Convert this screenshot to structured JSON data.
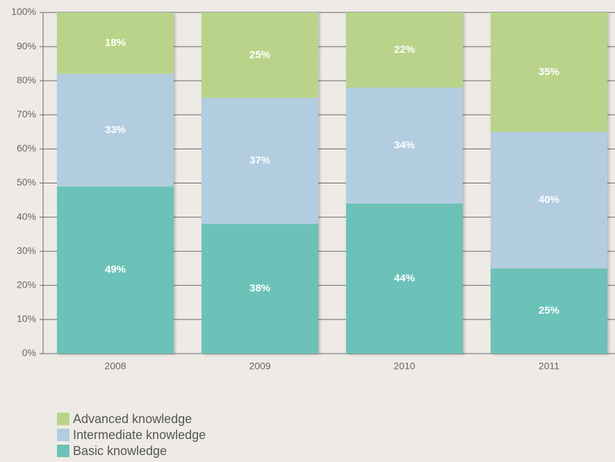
{
  "chart_data": {
    "type": "stacked_bar",
    "categories": [
      "2008",
      "2009",
      "2010",
      "2011"
    ],
    "series": [
      {
        "name": "Basic knowledge",
        "color": "#6cc2b8",
        "values": [
          49,
          38,
          44,
          25
        ],
        "value_labels": [
          "49%",
          "38%",
          "44%",
          "25%"
        ]
      },
      {
        "name": "Intermediate knowledge",
        "color": "#b3cde0",
        "values": [
          33,
          37,
          34,
          40
        ],
        "value_labels": [
          "33%",
          "37%",
          "34%",
          "40%"
        ]
      },
      {
        "name": "Advanced knowledge",
        "color": "#b9d48a",
        "values": [
          18,
          25,
          22,
          35
        ],
        "value_labels": [
          "18%",
          "25%",
          "22%",
          "35%"
        ]
      }
    ],
    "ylim": [
      0,
      100
    ],
    "yticks": [
      {
        "value": 0,
        "label": "0%"
      },
      {
        "value": 10,
        "label": "10%"
      },
      {
        "value": 20,
        "label": "20%"
      },
      {
        "value": 30,
        "label": "30%"
      },
      {
        "value": 40,
        "label": "40%"
      },
      {
        "value": 50,
        "label": "50%"
      },
      {
        "value": 60,
        "label": "60%"
      },
      {
        "value": 70,
        "label": "70%"
      },
      {
        "value": 80,
        "label": "80%"
      },
      {
        "value": 90,
        "label": "90%"
      },
      {
        "value": 100,
        "label": "100%"
      }
    ],
    "grid": true,
    "legend": "bottom-left"
  }
}
